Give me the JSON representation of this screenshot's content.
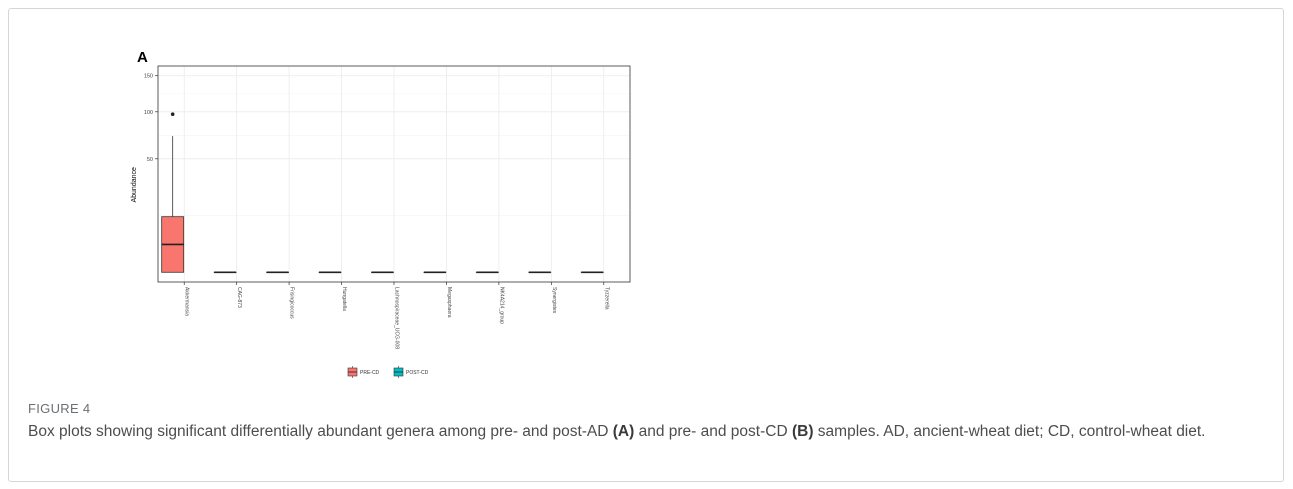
{
  "figure": {
    "label": "FIGURE 4",
    "caption": {
      "part1": "Box plots showing significant differentially abundant genera among pre- and post-AD ",
      "ref_a": "(A)",
      "part2": " and pre- and post-CD ",
      "ref_b": "(B)",
      "part3": " samples. AD, ancient-wheat diet; CD, control-wheat diet."
    }
  },
  "colors": {
    "pre": "#f8766d",
    "post": "#00bfc4",
    "grid": "#ebebeb",
    "frame": "#333333"
  },
  "chart_data": [
    {
      "type": "boxplot",
      "panel_label": "A",
      "ylabel": "Abundance",
      "y_scale": "sqrt",
      "yticks": [
        50,
        100,
        150
      ],
      "ylim": [
        0,
        150
      ],
      "grid": true,
      "legend_position": "bottom",
      "legend": [
        {
          "name": "PRE-CD",
          "color": "#f8766d"
        },
        {
          "name": "POST-CD",
          "color": "#00bfc4"
        }
      ],
      "categories": [
        "Akkermansia",
        "CAG-873",
        "Frisingicoccus",
        "Hungatella",
        "Lachnospiraceae_UCG-008",
        "Megasphaera",
        "NK4A214_group",
        "Synergistes",
        "Tyzzerella"
      ],
      "series": [
        {
          "name": "PRE-CD",
          "boxes": [
            {
              "whisker_low": 0,
              "q1": 0,
              "median": 3,
              "q3": 12,
              "whisker_high": 72,
              "outliers": [
                97
              ]
            },
            {
              "whisker_low": 0,
              "q1": 0,
              "median": 0,
              "q3": 0,
              "whisker_high": 0,
              "outliers": []
            },
            {
              "whisker_low": 0,
              "q1": 0,
              "median": 0,
              "q3": 0,
              "whisker_high": 0,
              "outliers": []
            },
            {
              "whisker_low": 0,
              "q1": 0,
              "median": 0,
              "q3": 0,
              "whisker_high": 0,
              "outliers": []
            },
            {
              "whisker_low": 0,
              "q1": 0,
              "median": 0,
              "q3": 0,
              "whisker_high": 0,
              "outliers": []
            },
            {
              "whisker_low": 0,
              "q1": 0,
              "median": 0,
              "q3": 0,
              "whisker_high": 0,
              "outliers": []
            },
            {
              "whisker_low": 0,
              "q1": 0,
              "median": 0,
              "q3": 0,
              "whisker_high": 0,
              "outliers": []
            },
            {
              "whisker_low": 0,
              "q1": 0,
              "median": 0,
              "q3": 0,
              "whisker_high": 0,
              "outliers": []
            },
            {
              "whisker_low": 0,
              "q1": 0,
              "median": 0,
              "q3": 0,
              "whisker_high": 0,
              "outliers": []
            }
          ]
        }
      ]
    }
  ]
}
